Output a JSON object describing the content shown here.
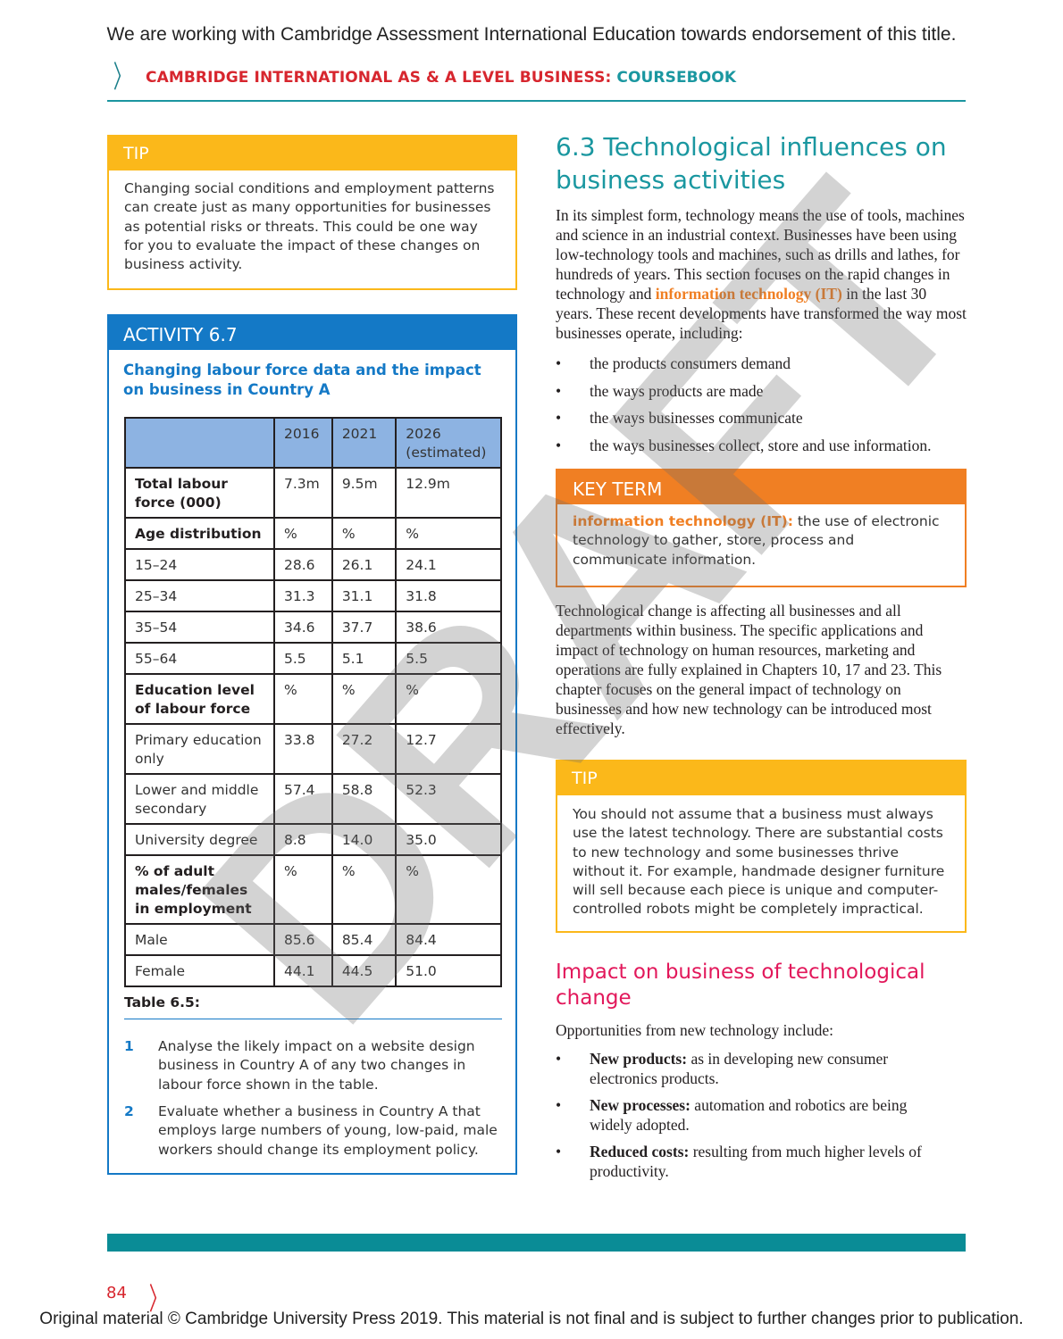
{
  "top_note": "We are working with Cambridge Assessment International Education towards endorsement of this title.",
  "header": {
    "title_red": "CAMBRIDGE INTERNATIONAL AS & A LEVEL BUSINESS:",
    "title_teal": "COURSEBOOK"
  },
  "tip1": {
    "heading": "TIP",
    "text": "Changing social conditions and employment patterns can create just as many opportunities for businesses as potential risks or threats. This could be one way for you to evaluate the impact of these changes on business activity."
  },
  "activity": {
    "heading": "ACTIVITY 6.7",
    "subtitle": "Changing labour force data and the impact on business in Country A",
    "table": {
      "headers": [
        "",
        "2016",
        "2021",
        "2026 (estimated)"
      ],
      "rows": [
        {
          "label": "Total labour force (000)",
          "bold": true,
          "values": [
            "7.3m",
            "9.5m",
            "12.9m"
          ]
        },
        {
          "label": "Age distribution",
          "bold": true,
          "values": [
            "%",
            "%",
            "%"
          ]
        },
        {
          "label": "15–24",
          "values": [
            "28.6",
            "26.1",
            "24.1"
          ]
        },
        {
          "label": "25–34",
          "values": [
            "31.3",
            "31.1",
            "31.8"
          ]
        },
        {
          "label": "35–54",
          "values": [
            "34.6",
            "37.7",
            "38.6"
          ]
        },
        {
          "label": "55–64",
          "values": [
            "5.5",
            "5.1",
            "5.5"
          ]
        },
        {
          "label": "Education level of labour force",
          "bold": true,
          "values": [
            "%",
            "%",
            "%"
          ]
        },
        {
          "label": "Primary education only",
          "values": [
            "33.8",
            "27.2",
            "12.7"
          ]
        },
        {
          "label": "Lower and middle secondary",
          "values": [
            "57.4",
            "58.8",
            "52.3"
          ]
        },
        {
          "label": "University degree",
          "values": [
            "8.8",
            "14.0",
            "35.0"
          ]
        },
        {
          "label": "% of adult males/females in employment",
          "bold": true,
          "values": [
            "%",
            "%",
            "%"
          ]
        },
        {
          "label": "Male",
          "values": [
            "85.6",
            "85.4",
            "84.4"
          ]
        },
        {
          "label": "Female",
          "values": [
            "44.1",
            "44.5",
            "51.0"
          ]
        }
      ]
    },
    "caption": "Table 6.5:",
    "questions": [
      {
        "num": "1",
        "text": "Analyse the likely impact on a website design business in Country A of any two changes in labour force shown in the table."
      },
      {
        "num": "2",
        "text": "Evaluate whether a business in Country A that employs large numbers of young, low-paid, male workers should change its employment policy."
      }
    ]
  },
  "section": {
    "heading": "6.3  Technological influences on business activities",
    "para1_a": "In its simplest form, technology means the use of tools, machines and science in an industrial context. Businesses have been using low-technology tools and machines, such as drills and lathes, for hundreds of years. This section focuses on the rapid changes in technology and ",
    "para1_term": "information technology (IT)",
    "para1_b": " in the last 30 years. These recent developments have transformed the way most businesses operate, including:",
    "bullets": [
      "the products consumers demand",
      "the ways products are made",
      "the ways businesses communicate",
      "the ways businesses collect, store and use information."
    ],
    "para2": "Technological change is affecting all businesses and all departments within business. The specific applications and impact of technology on human resources, marketing and operations are fully explained in Chapters 10, 17 and 23. This chapter focuses on the general impact of technology on businesses and how new technology can be introduced most effectively."
  },
  "key_term": {
    "heading": "KEY TERM",
    "term": "information technology (IT):",
    "definition": " the use of electronic technology to gather, store, process and communicate information."
  },
  "tip2": {
    "heading": "TIP",
    "text": "You should not assume that a business must always use the latest technology. There are substantial costs to new technology and some businesses thrive without it. For example, handmade designer furniture will sell because each piece is unique and computer-controlled robots might be completely impractical."
  },
  "impact": {
    "heading": "Impact on business of technological change",
    "intro": "Opportunities from new technology include:",
    "bullets": [
      {
        "bold": "New products:",
        "text": " as in developing new consumer electronics products."
      },
      {
        "bold": "New processes:",
        "text": " automation and robotics are being widely adopted."
      },
      {
        "bold": "Reduced costs:",
        "text": " resulting from much higher levels of productivity."
      }
    ]
  },
  "page_number": "84",
  "watermark": "DRAFT",
  "footer": "Original material © Cambridge University Press 2019. This material is not final and is subject to further changes prior to publication."
}
